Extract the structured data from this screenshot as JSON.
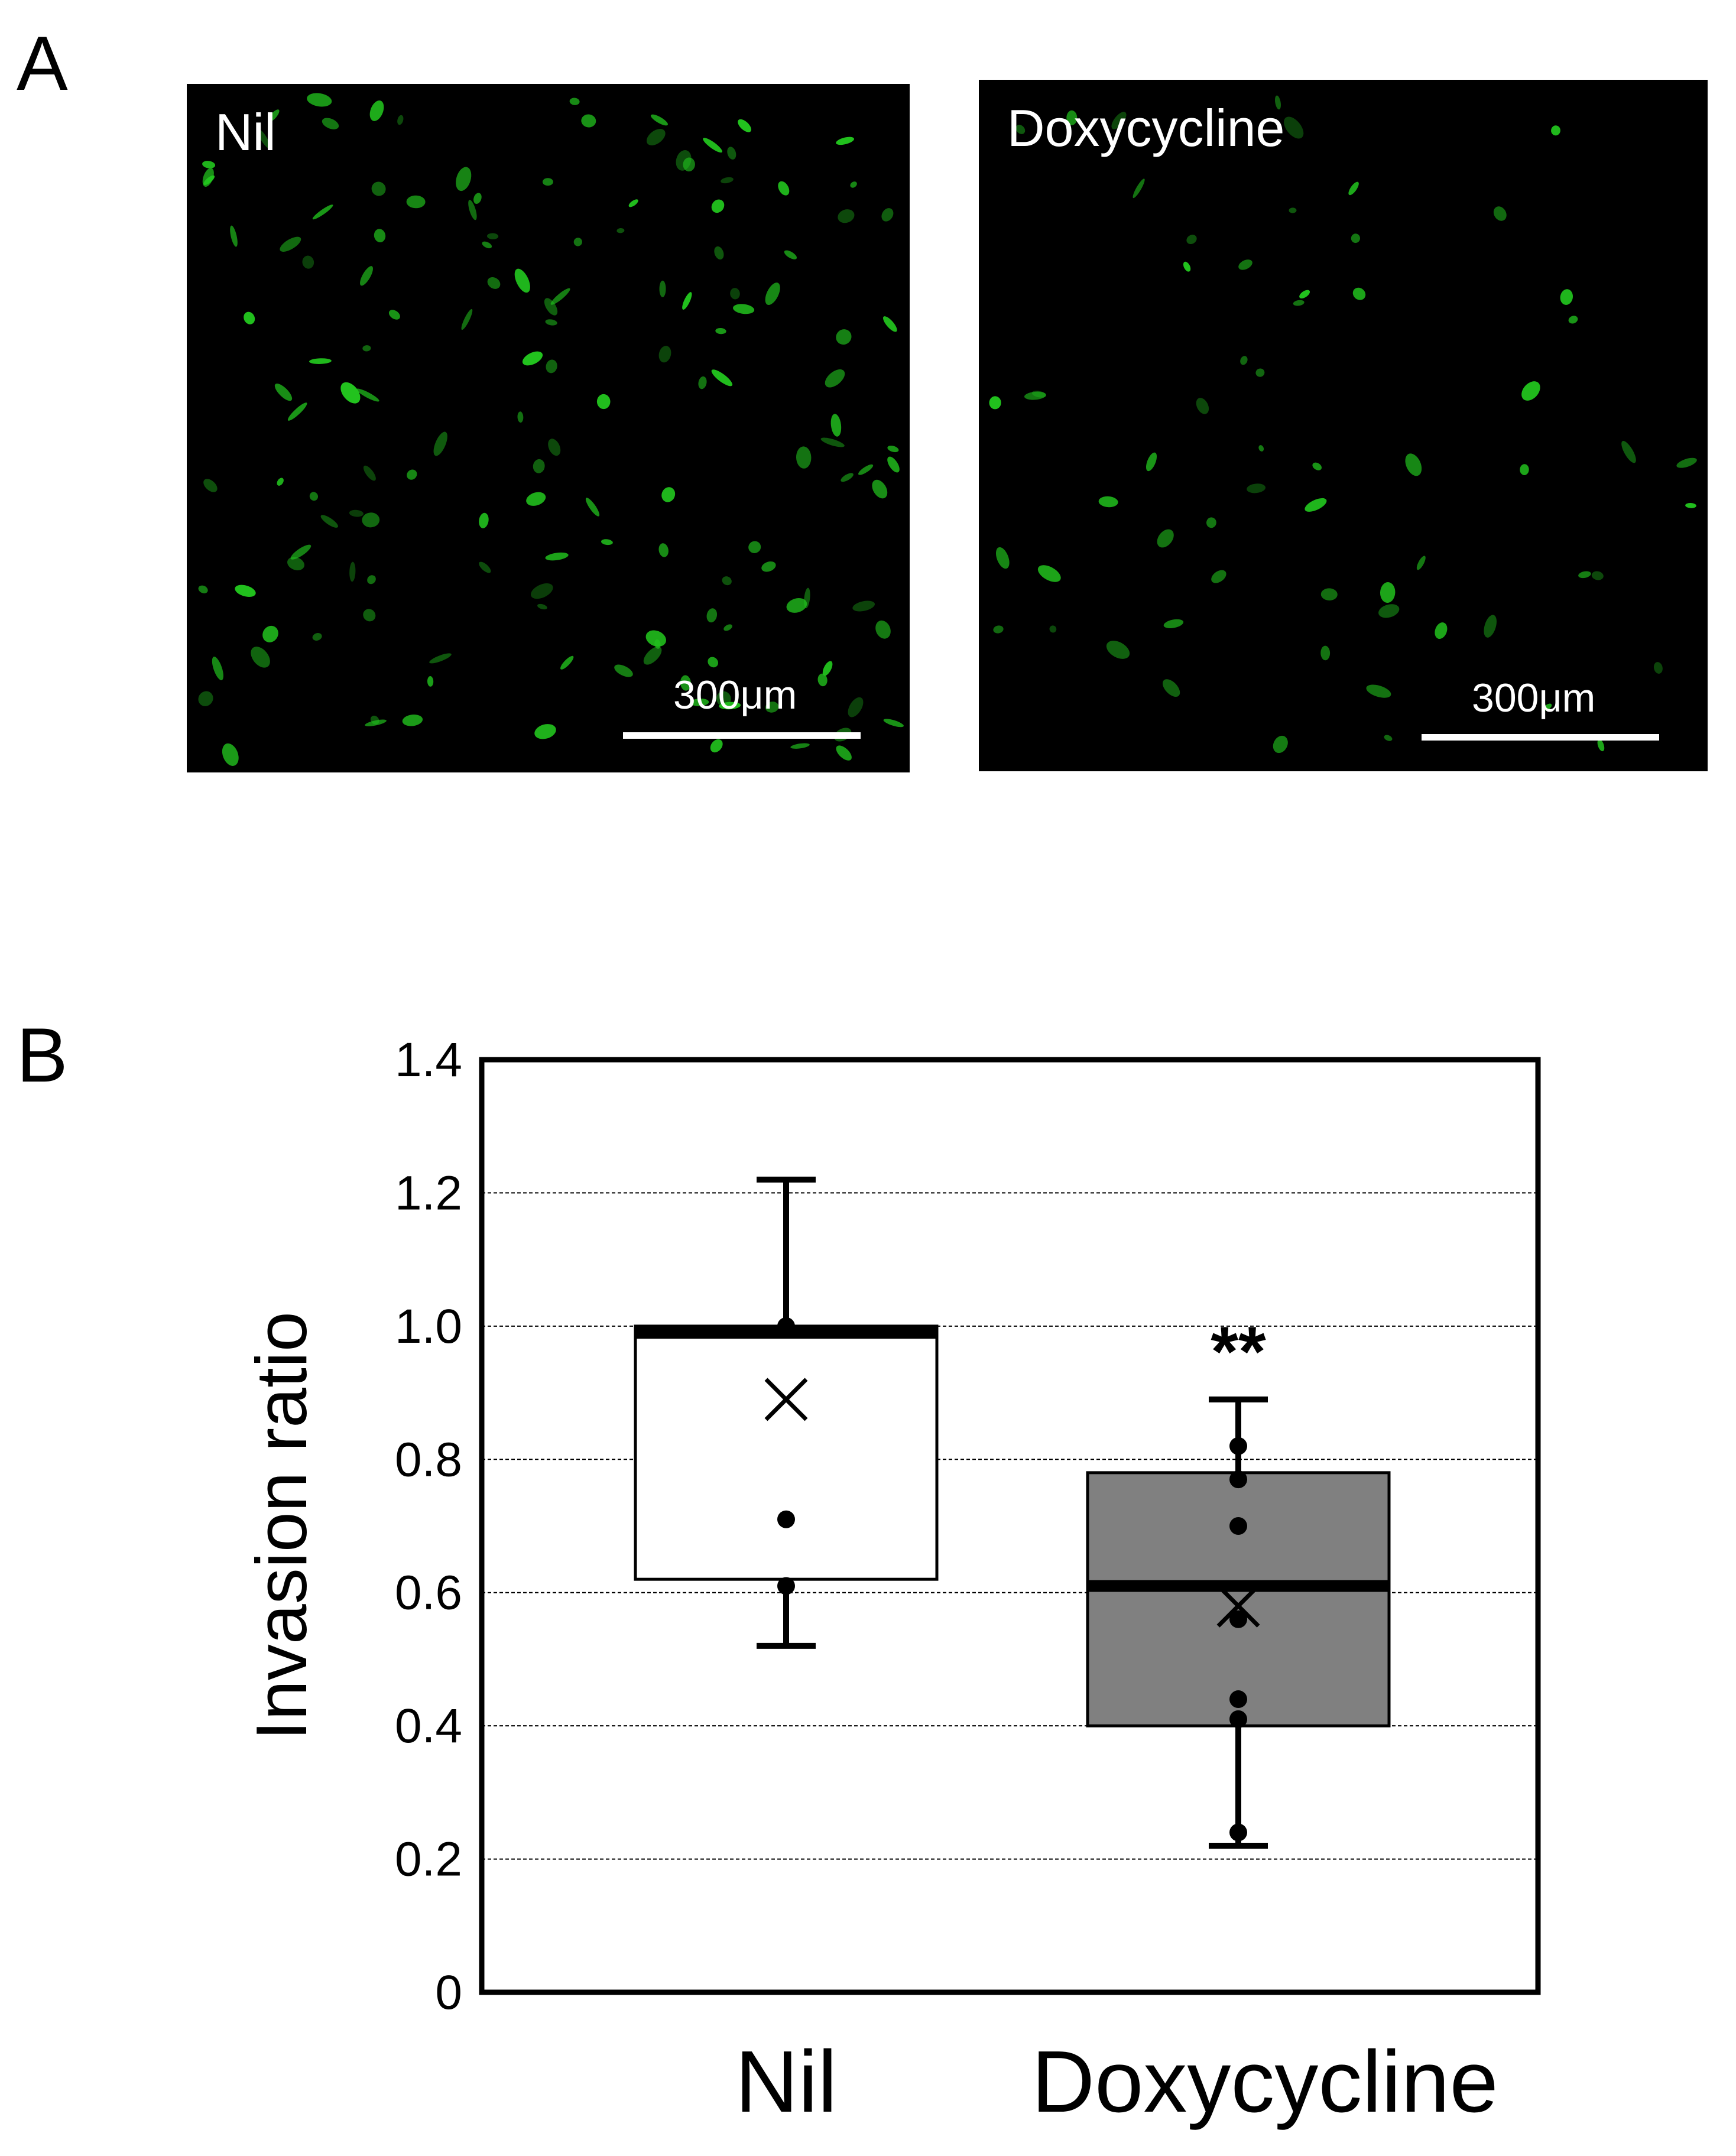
{
  "panel_a": {
    "letter": "A",
    "images": [
      {
        "label": "Nil",
        "scale_bar": "300μm"
      },
      {
        "label": "Doxycycline",
        "scale_bar": "300μm"
      }
    ]
  },
  "panel_b": {
    "letter": "B"
  },
  "colors": {
    "cell_green": "#22c41e",
    "nil_box": "#ffffff",
    "doxy_box": "#808080"
  },
  "chart_data": {
    "type": "box",
    "ylabel": "Invasion ratio",
    "ylim": [
      0,
      1.4
    ],
    "yticks": [
      0,
      0.2,
      0.4,
      0.6,
      0.8,
      1.0,
      1.2,
      1.4
    ],
    "ytick_labels": [
      "0",
      "0.2",
      "0.4",
      "0.6",
      "0.8",
      "1.0",
      "1.2",
      "1.4"
    ],
    "grid": true,
    "categories": [
      "Nil",
      "Doxycycline"
    ],
    "boxes": [
      {
        "category": "Nil",
        "whisker_low": 0.52,
        "q1": 0.62,
        "median": 0.99,
        "q3": 1.0,
        "whisker_high": 1.22,
        "mean": 0.89,
        "points": [
          1.0,
          0.71,
          0.61
        ],
        "fill": "#ffffff",
        "significance": ""
      },
      {
        "category": "Doxycycline",
        "whisker_low": 0.22,
        "q1": 0.4,
        "median": 0.61,
        "q3": 0.78,
        "whisker_high": 0.89,
        "mean": 0.58,
        "points": [
          0.82,
          0.77,
          0.7,
          0.56,
          0.44,
          0.41,
          0.24
        ],
        "fill": "#808080",
        "significance": "**"
      }
    ]
  }
}
